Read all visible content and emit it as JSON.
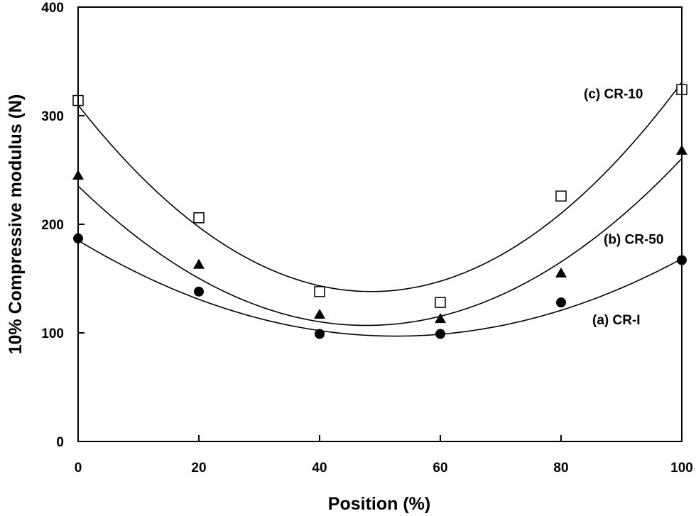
{
  "chart_data": {
    "type": "scatter",
    "xlabel": "Position (%)",
    "ylabel": "10% Compressive modulus (N)",
    "xlim": [
      0,
      100
    ],
    "ylim": [
      0,
      400
    ],
    "xticks": [
      0,
      20,
      40,
      60,
      80,
      100
    ],
    "yticks": [
      0,
      100,
      200,
      300,
      400
    ],
    "grid": false,
    "legend": "none (series labelled directly on plot)",
    "series": [
      {
        "name": "(a) CR-I",
        "marker": "filled-circle",
        "x": [
          0,
          20,
          40,
          60,
          80,
          100
        ],
        "y": [
          187,
          138,
          99,
          99,
          128,
          167
        ],
        "fit": "quadratic",
        "fit_values": [
          186,
          130,
          101,
          99,
          123,
          167
        ]
      },
      {
        "name": "(b) CR-50",
        "marker": "filled-triangle",
        "x": [
          0,
          20,
          40,
          60,
          80,
          100
        ],
        "y": [
          245,
          163,
          117,
          113,
          155,
          268
        ],
        "fit": "quadratic",
        "fit_values": [
          236,
          149,
          110,
          116,
          166,
          260
        ]
      },
      {
        "name": "(c) CR-10",
        "marker": "open-square",
        "x": [
          0,
          20,
          40,
          60,
          80,
          100
        ],
        "y": [
          314,
          206,
          138,
          128,
          226,
          324
        ],
        "fit": "quadratic",
        "fit_values": [
          314,
          193,
          138,
          148,
          222,
          324
        ]
      }
    ]
  }
}
